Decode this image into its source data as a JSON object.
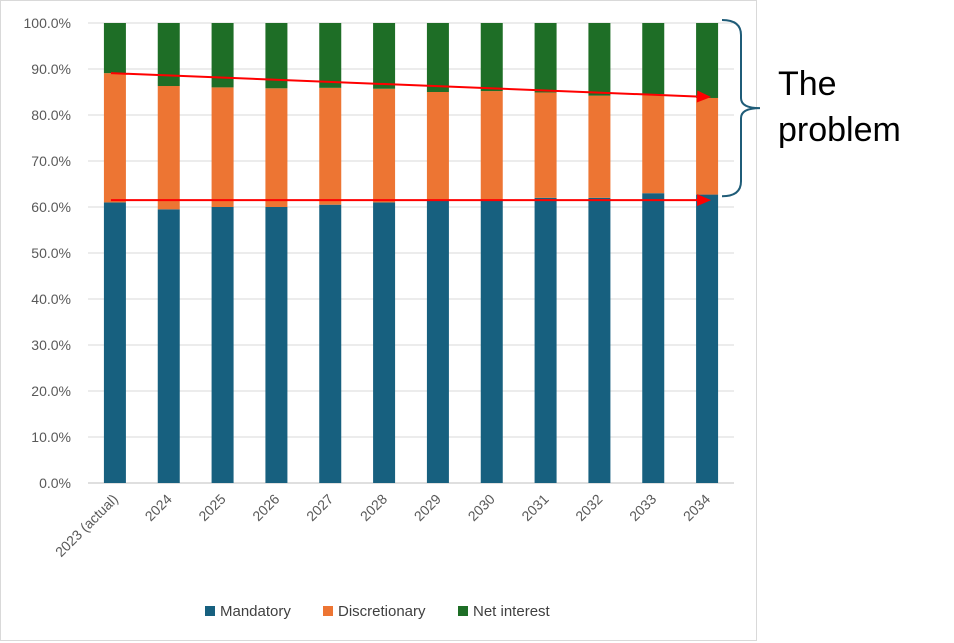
{
  "chart_data": {
    "type": "bar",
    "stacked": true,
    "categories": [
      "2023 (actual)",
      "2024",
      "2025",
      "2026",
      "2027",
      "2028",
      "2029",
      "2030",
      "2031",
      "2032",
      "2033",
      "2034"
    ],
    "series": [
      {
        "name": "Mandatory",
        "color": "#17607f",
        "values": [
          61.0,
          59.5,
          60.0,
          60.0,
          60.5,
          61.0,
          61.5,
          61.5,
          62.0,
          62.0,
          63.0,
          62.7
        ]
      },
      {
        "name": "Discretionary",
        "color": "#ed7533",
        "values": [
          28.1,
          26.8,
          26.0,
          25.8,
          25.4,
          24.7,
          23.5,
          23.7,
          22.9,
          22.2,
          21.5,
          21.0
        ]
      },
      {
        "name": "Net interest",
        "color": "#1e6e26",
        "values": [
          10.9,
          13.7,
          14.0,
          14.2,
          14.1,
          14.3,
          15.0,
          14.8,
          15.1,
          15.8,
          15.5,
          16.3
        ]
      }
    ],
    "ylim": [
      0,
      100
    ],
    "yticks": [
      "0.0%",
      "10.0%",
      "20.0%",
      "30.0%",
      "40.0%",
      "50.0%",
      "60.0%",
      "70.0%",
      "80.0%",
      "90.0%",
      "100.0%"
    ],
    "grid": true,
    "legend_position": "bottom",
    "annotations": {
      "callout_lines": [
        "The",
        "problem"
      ],
      "arrows": [
        {
          "from": {
            "category": "2023 (actual)",
            "value": 89.1
          },
          "to": {
            "category": "2034",
            "value": 83.9
          },
          "color": "#ff0000"
        },
        {
          "from": {
            "category": "2023 (actual)",
            "value": 61.5
          },
          "to": {
            "category": "2034",
            "value": 61.5
          },
          "color": "#ff0000"
        }
      ],
      "brace_range": [
        63,
        100
      ],
      "brace_color": "#1f5c78"
    }
  }
}
